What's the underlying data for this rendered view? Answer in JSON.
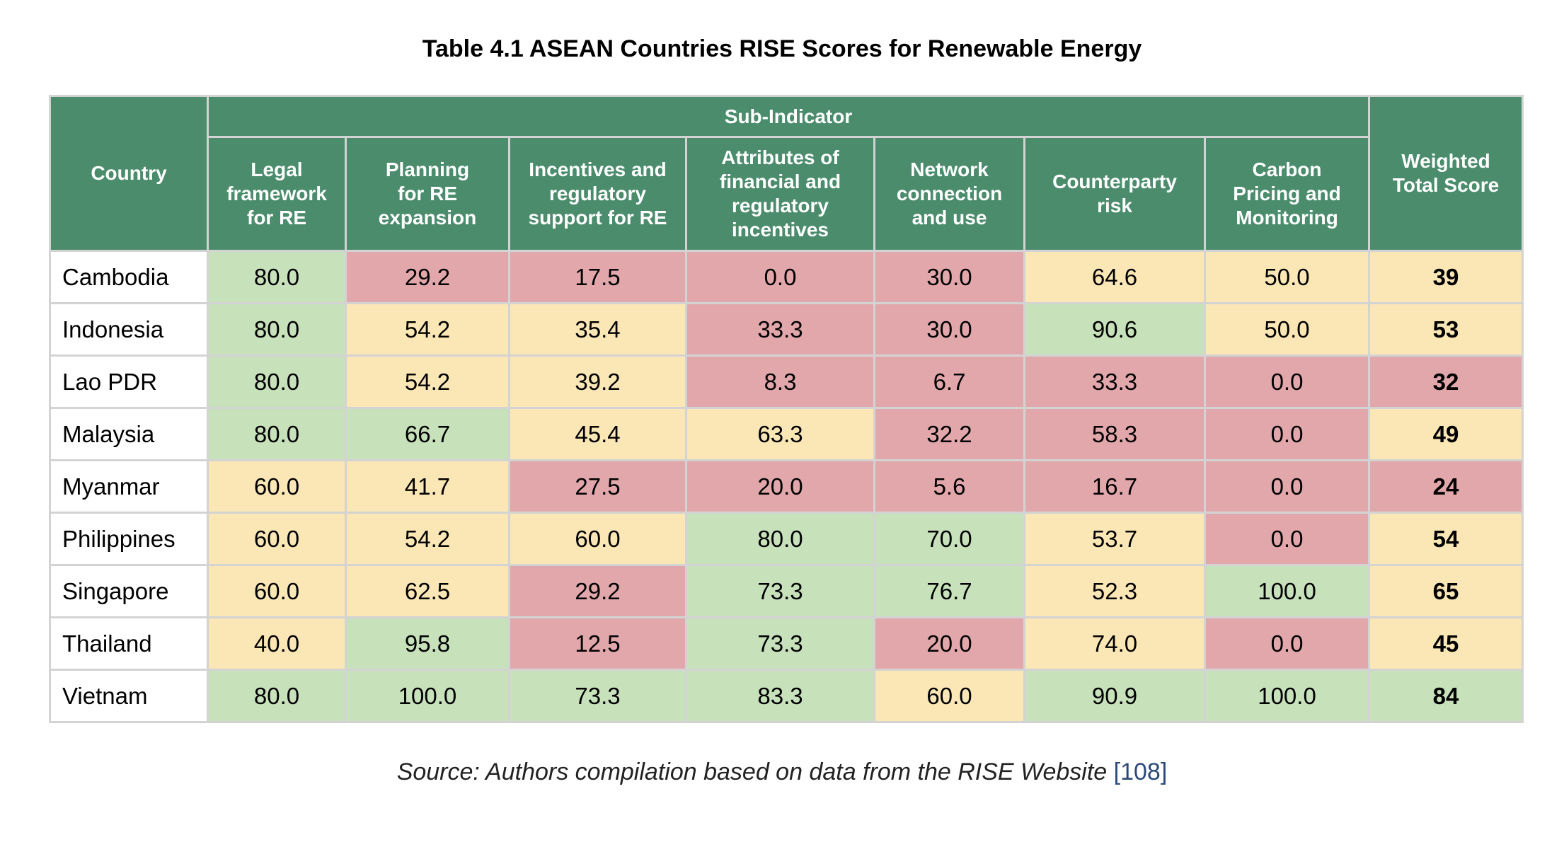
{
  "title": "Table 4.1 ASEAN Countries RISE Scores for Renewable Energy",
  "table": {
    "header": {
      "country": "Country",
      "group": "Sub-Indicator",
      "total": "Weighted Total Score",
      "columns": [
        "Legal framework for RE",
        "Planning for RE expansion",
        "Incentives and regulatory support for RE",
        "Attributes of financial and regulatory incentives",
        "Network connection and use",
        "Counterparty risk",
        "Carbon Pricing and Monitoring"
      ]
    },
    "rows": [
      {
        "country": "Cambodia",
        "values": [
          "80.0",
          "29.2",
          "17.5",
          "0.0",
          "30.0",
          "64.6",
          "50.0"
        ],
        "total": "39"
      },
      {
        "country": "Indonesia",
        "values": [
          "80.0",
          "54.2",
          "35.4",
          "33.3",
          "30.0",
          "90.6",
          "50.0"
        ],
        "total": "53"
      },
      {
        "country": "Lao PDR",
        "values": [
          "80.0",
          "54.2",
          "39.2",
          "8.3",
          "6.7",
          "33.3",
          "0.0"
        ],
        "total": "32"
      },
      {
        "country": "Malaysia",
        "values": [
          "80.0",
          "66.7",
          "45.4",
          "63.3",
          "32.2",
          "58.3",
          "0.0"
        ],
        "total": "49"
      },
      {
        "country": "Myanmar",
        "values": [
          "60.0",
          "41.7",
          "27.5",
          "20.0",
          "5.6",
          "16.7",
          "0.0"
        ],
        "total": "24"
      },
      {
        "country": "Philippines",
        "values": [
          "60.0",
          "54.2",
          "60.0",
          "80.0",
          "70.0",
          "53.7",
          "0.0"
        ],
        "total": "54"
      },
      {
        "country": "Singapore",
        "values": [
          "60.0",
          "62.5",
          "29.2",
          "73.3",
          "76.7",
          "52.3",
          "100.0"
        ],
        "total": "65"
      },
      {
        "country": "Thailand",
        "values": [
          "40.0",
          "95.8",
          "12.5",
          "73.3",
          "20.0",
          "74.0",
          "0.0"
        ],
        "total": "45"
      },
      {
        "country": "Vietnam",
        "values": [
          "80.0",
          "100.0",
          "73.3",
          "83.3",
          "60.0",
          "90.9",
          "100.0"
        ],
        "total": "84"
      }
    ],
    "colors": {
      "header": "#4a8c6c",
      "high": "#c7e1bb",
      "medium": "#fbe6b5",
      "low": "#e2a7ab"
    }
  },
  "source": {
    "text": "Source: Authors compilation based on data from the RISE Website",
    "ref": "[108]"
  }
}
